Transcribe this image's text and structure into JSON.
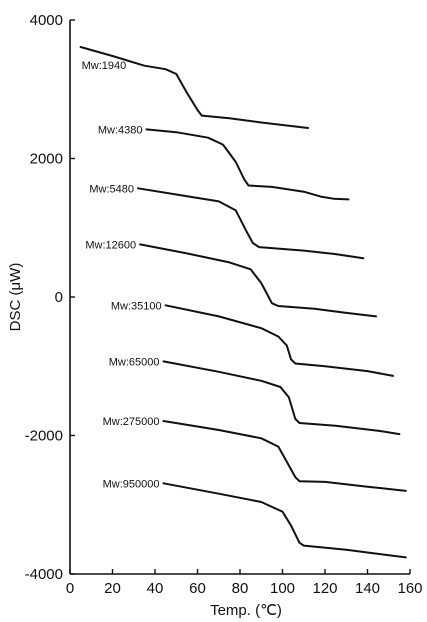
{
  "chart_data": {
    "type": "line",
    "xlabel": "Temp. (℃)",
    "ylabel": "DSC (μW)",
    "xlim": [
      0,
      160
    ],
    "ylim": [
      -4000,
      4000
    ],
    "x_ticks": [
      "0",
      "20",
      "40",
      "60",
      "80",
      "100",
      "120",
      "140",
      "160"
    ],
    "y_ticks": [
      "4000",
      "2000",
      "0",
      "-2000",
      "-4000"
    ],
    "grid": false,
    "series": [
      {
        "name": "Mw:1940",
        "color": "#111111",
        "points": [
          [
            5,
            3610
          ],
          [
            20,
            3480
          ],
          [
            35,
            3340
          ],
          [
            45,
            3290
          ],
          [
            50,
            3220
          ],
          [
            55,
            2950
          ],
          [
            60,
            2700
          ],
          [
            62,
            2620
          ],
          [
            75,
            2580
          ],
          [
            90,
            2520
          ],
          [
            112,
            2440
          ]
        ]
      },
      {
        "name": "Mw:4380",
        "color": "#111111",
        "points": [
          [
            36,
            2420
          ],
          [
            50,
            2380
          ],
          [
            65,
            2300
          ],
          [
            72,
            2200
          ],
          [
            78,
            1950
          ],
          [
            82,
            1700
          ],
          [
            84,
            1610
          ],
          [
            95,
            1590
          ],
          [
            110,
            1520
          ],
          [
            118,
            1450
          ],
          [
            124,
            1420
          ],
          [
            131,
            1410
          ]
        ]
      },
      {
        "name": "Mw:5480",
        "color": "#111111",
        "points": [
          [
            32,
            1570
          ],
          [
            50,
            1480
          ],
          [
            70,
            1380
          ],
          [
            78,
            1250
          ],
          [
            83,
            950
          ],
          [
            86,
            780
          ],
          [
            89,
            720
          ],
          [
            110,
            670
          ],
          [
            125,
            620
          ],
          [
            138,
            560
          ]
        ]
      },
      {
        "name": "Mw:12600",
        "color": "#111111",
        "points": [
          [
            33,
            760
          ],
          [
            55,
            630
          ],
          [
            75,
            500
          ],
          [
            85,
            400
          ],
          [
            90,
            200
          ],
          [
            95,
            -90
          ],
          [
            98,
            -130
          ],
          [
            115,
            -170
          ],
          [
            130,
            -230
          ],
          [
            144,
            -280
          ]
        ]
      },
      {
        "name": "Mw:35100",
        "color": "#111111",
        "points": [
          [
            45,
            -120
          ],
          [
            70,
            -280
          ],
          [
            90,
            -450
          ],
          [
            98,
            -570
          ],
          [
            102,
            -700
          ],
          [
            104,
            -900
          ],
          [
            106,
            -960
          ],
          [
            120,
            -1000
          ],
          [
            140,
            -1070
          ],
          [
            152,
            -1140
          ]
        ]
      },
      {
        "name": "Mw:65000",
        "color": "#111111",
        "points": [
          [
            44,
            -930
          ],
          [
            70,
            -1080
          ],
          [
            90,
            -1210
          ],
          [
            99,
            -1300
          ],
          [
            103,
            -1450
          ],
          [
            106,
            -1760
          ],
          [
            108,
            -1820
          ],
          [
            125,
            -1860
          ],
          [
            145,
            -1930
          ],
          [
            155,
            -1980
          ]
        ]
      },
      {
        "name": "Mw:275000",
        "color": "#111111",
        "points": [
          [
            44,
            -1790
          ],
          [
            70,
            -1920
          ],
          [
            90,
            -2040
          ],
          [
            98,
            -2160
          ],
          [
            102,
            -2380
          ],
          [
            106,
            -2600
          ],
          [
            108,
            -2660
          ],
          [
            120,
            -2670
          ],
          [
            140,
            -2740
          ],
          [
            158,
            -2800
          ]
        ]
      },
      {
        "name": "Mw:950000",
        "color": "#111111",
        "points": [
          [
            44,
            -2690
          ],
          [
            70,
            -2840
          ],
          [
            90,
            -2960
          ],
          [
            100,
            -3100
          ],
          [
            104,
            -3300
          ],
          [
            108,
            -3550
          ],
          [
            110,
            -3590
          ],
          [
            130,
            -3650
          ],
          [
            145,
            -3710
          ],
          [
            158,
            -3760
          ]
        ]
      }
    ]
  }
}
